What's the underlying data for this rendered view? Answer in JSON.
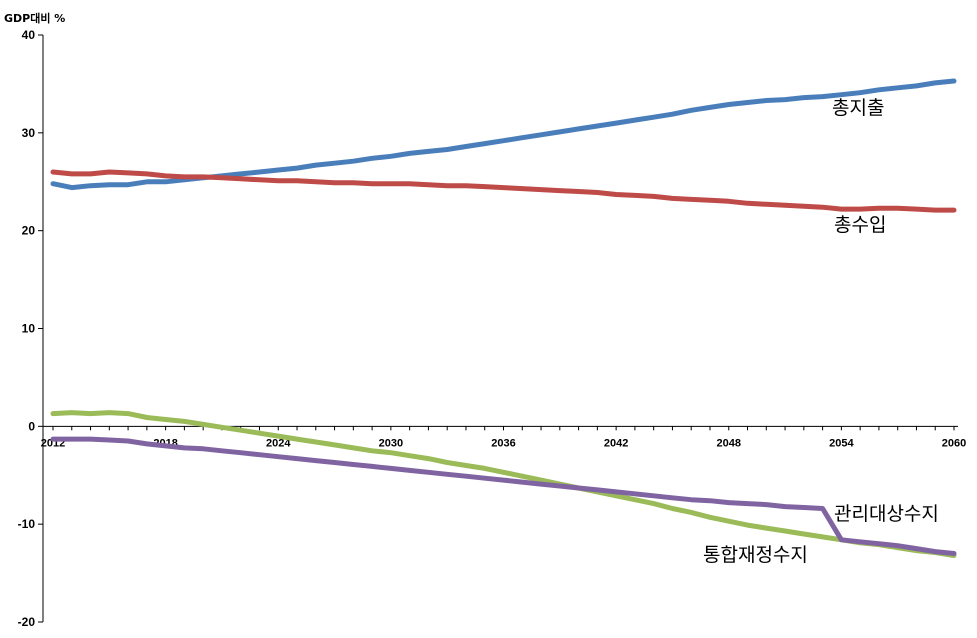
{
  "chart_data": {
    "type": "line",
    "ylabel": "GDP대비 %",
    "xlabel": "",
    "ylim": [
      -20,
      40
    ],
    "yticks": [
      40,
      30,
      20,
      10,
      0,
      -10,
      -20
    ],
    "xlim": [
      2012,
      2060
    ],
    "xticks": [
      "2012",
      "2018",
      "2024",
      "2030",
      "2036",
      "2042",
      "2048",
      "2054",
      "2060"
    ],
    "grid": false,
    "legend": "inline labels",
    "series": [
      {
        "name": "총지출",
        "color": "#4a7ebb",
        "points": [
          [
            2012,
            24.8
          ],
          [
            2013,
            24.4
          ],
          [
            2014,
            24.6
          ],
          [
            2015,
            24.7
          ],
          [
            2016,
            24.7
          ],
          [
            2017,
            25.0
          ],
          [
            2018,
            25.0
          ],
          [
            2019,
            25.2
          ],
          [
            2020,
            25.4
          ],
          [
            2021,
            25.6
          ],
          [
            2022,
            25.8
          ],
          [
            2023,
            26.0
          ],
          [
            2024,
            26.2
          ],
          [
            2025,
            26.4
          ],
          [
            2026,
            26.7
          ],
          [
            2027,
            26.9
          ],
          [
            2028,
            27.1
          ],
          [
            2029,
            27.4
          ],
          [
            2030,
            27.6
          ],
          [
            2031,
            27.9
          ],
          [
            2032,
            28.1
          ],
          [
            2033,
            28.3
          ],
          [
            2034,
            28.6
          ],
          [
            2035,
            28.9
          ],
          [
            2036,
            29.2
          ],
          [
            2037,
            29.5
          ],
          [
            2038,
            29.8
          ],
          [
            2039,
            30.1
          ],
          [
            2040,
            30.4
          ],
          [
            2041,
            30.7
          ],
          [
            2042,
            31.0
          ],
          [
            2043,
            31.3
          ],
          [
            2044,
            31.6
          ],
          [
            2045,
            31.9
          ],
          [
            2046,
            32.3
          ],
          [
            2047,
            32.6
          ],
          [
            2048,
            32.9
          ],
          [
            2049,
            33.1
          ],
          [
            2050,
            33.3
          ],
          [
            2051,
            33.4
          ],
          [
            2052,
            33.6
          ],
          [
            2053,
            33.7
          ],
          [
            2054,
            33.9
          ],
          [
            2055,
            34.1
          ],
          [
            2056,
            34.4
          ],
          [
            2057,
            34.6
          ],
          [
            2058,
            34.8
          ],
          [
            2059,
            35.1
          ],
          [
            2060,
            35.3
          ]
        ]
      },
      {
        "name": "총수입",
        "color": "#be4b48",
        "points": [
          [
            2012,
            26.0
          ],
          [
            2013,
            25.8
          ],
          [
            2014,
            25.8
          ],
          [
            2015,
            26.0
          ],
          [
            2016,
            25.9
          ],
          [
            2017,
            25.8
          ],
          [
            2018,
            25.6
          ],
          [
            2019,
            25.5
          ],
          [
            2020,
            25.5
          ],
          [
            2021,
            25.4
          ],
          [
            2022,
            25.3
          ],
          [
            2023,
            25.2
          ],
          [
            2024,
            25.1
          ],
          [
            2025,
            25.1
          ],
          [
            2026,
            25.0
          ],
          [
            2027,
            24.9
          ],
          [
            2028,
            24.9
          ],
          [
            2029,
            24.8
          ],
          [
            2030,
            24.8
          ],
          [
            2031,
            24.8
          ],
          [
            2032,
            24.7
          ],
          [
            2033,
            24.6
          ],
          [
            2034,
            24.6
          ],
          [
            2035,
            24.5
          ],
          [
            2036,
            24.4
          ],
          [
            2037,
            24.3
          ],
          [
            2038,
            24.2
          ],
          [
            2039,
            24.1
          ],
          [
            2040,
            24.0
          ],
          [
            2041,
            23.9
          ],
          [
            2042,
            23.7
          ],
          [
            2043,
            23.6
          ],
          [
            2044,
            23.5
          ],
          [
            2045,
            23.3
          ],
          [
            2046,
            23.2
          ],
          [
            2047,
            23.1
          ],
          [
            2048,
            23.0
          ],
          [
            2049,
            22.8
          ],
          [
            2050,
            22.7
          ],
          [
            2051,
            22.6
          ],
          [
            2052,
            22.5
          ],
          [
            2053,
            22.4
          ],
          [
            2054,
            22.2
          ],
          [
            2055,
            22.2
          ],
          [
            2056,
            22.3
          ],
          [
            2057,
            22.3
          ],
          [
            2058,
            22.2
          ],
          [
            2059,
            22.1
          ],
          [
            2060,
            22.1
          ]
        ]
      },
      {
        "name": "통합재정수지",
        "color": "#9bbb59",
        "points": [
          [
            2012,
            1.3
          ],
          [
            2013,
            1.4
          ],
          [
            2014,
            1.3
          ],
          [
            2015,
            1.4
          ],
          [
            2016,
            1.3
          ],
          [
            2017,
            0.9
          ],
          [
            2018,
            0.7
          ],
          [
            2019,
            0.5
          ],
          [
            2020,
            0.2
          ],
          [
            2021,
            -0.1
          ],
          [
            2022,
            -0.4
          ],
          [
            2023,
            -0.7
          ],
          [
            2024,
            -1.0
          ],
          [
            2025,
            -1.3
          ],
          [
            2026,
            -1.6
          ],
          [
            2027,
            -1.9
          ],
          [
            2028,
            -2.2
          ],
          [
            2029,
            -2.5
          ],
          [
            2030,
            -2.7
          ],
          [
            2031,
            -3.0
          ],
          [
            2032,
            -3.3
          ],
          [
            2033,
            -3.7
          ],
          [
            2034,
            -4.0
          ],
          [
            2035,
            -4.3
          ],
          [
            2036,
            -4.7
          ],
          [
            2037,
            -5.1
          ],
          [
            2038,
            -5.5
          ],
          [
            2039,
            -5.9
          ],
          [
            2040,
            -6.3
          ],
          [
            2041,
            -6.7
          ],
          [
            2042,
            -7.1
          ],
          [
            2043,
            -7.5
          ],
          [
            2044,
            -7.9
          ],
          [
            2045,
            -8.4
          ],
          [
            2046,
            -8.8
          ],
          [
            2047,
            -9.3
          ],
          [
            2048,
            -9.7
          ],
          [
            2049,
            -10.1
          ],
          [
            2050,
            -10.4
          ],
          [
            2051,
            -10.7
          ],
          [
            2052,
            -11.0
          ],
          [
            2053,
            -11.3
          ],
          [
            2054,
            -11.6
          ],
          [
            2055,
            -11.9
          ],
          [
            2056,
            -12.1
          ],
          [
            2057,
            -12.4
          ],
          [
            2058,
            -12.7
          ],
          [
            2059,
            -12.9
          ],
          [
            2060,
            -13.2
          ]
        ]
      },
      {
        "name": "관리대상수지",
        "color": "#8064a2",
        "points": [
          [
            2012,
            -1.3
          ],
          [
            2013,
            -1.3
          ],
          [
            2014,
            -1.3
          ],
          [
            2015,
            -1.4
          ],
          [
            2016,
            -1.5
          ],
          [
            2017,
            -1.8
          ],
          [
            2018,
            -2.0
          ],
          [
            2019,
            -2.2
          ],
          [
            2020,
            -2.3
          ],
          [
            2021,
            -2.5
          ],
          [
            2022,
            -2.7
          ],
          [
            2023,
            -2.9
          ],
          [
            2024,
            -3.1
          ],
          [
            2025,
            -3.3
          ],
          [
            2026,
            -3.5
          ],
          [
            2027,
            -3.7
          ],
          [
            2028,
            -3.9
          ],
          [
            2029,
            -4.1
          ],
          [
            2030,
            -4.3
          ],
          [
            2031,
            -4.5
          ],
          [
            2032,
            -4.7
          ],
          [
            2033,
            -4.9
          ],
          [
            2034,
            -5.1
          ],
          [
            2035,
            -5.3
          ],
          [
            2036,
            -5.5
          ],
          [
            2037,
            -5.7
          ],
          [
            2038,
            -5.9
          ],
          [
            2039,
            -6.1
          ],
          [
            2040,
            -6.3
          ],
          [
            2041,
            -6.5
          ],
          [
            2042,
            -6.7
          ],
          [
            2043,
            -6.9
          ],
          [
            2044,
            -7.1
          ],
          [
            2045,
            -7.3
          ],
          [
            2046,
            -7.5
          ],
          [
            2047,
            -7.6
          ],
          [
            2048,
            -7.8
          ],
          [
            2049,
            -7.9
          ],
          [
            2050,
            -8.0
          ],
          [
            2051,
            -8.2
          ],
          [
            2052,
            -8.3
          ],
          [
            2053,
            -8.4
          ],
          [
            2054,
            -11.6
          ],
          [
            2055,
            -11.8
          ],
          [
            2056,
            -12.0
          ],
          [
            2057,
            -12.2
          ],
          [
            2058,
            -12.5
          ],
          [
            2059,
            -12.8
          ],
          [
            2060,
            -13.0
          ]
        ]
      }
    ]
  }
}
